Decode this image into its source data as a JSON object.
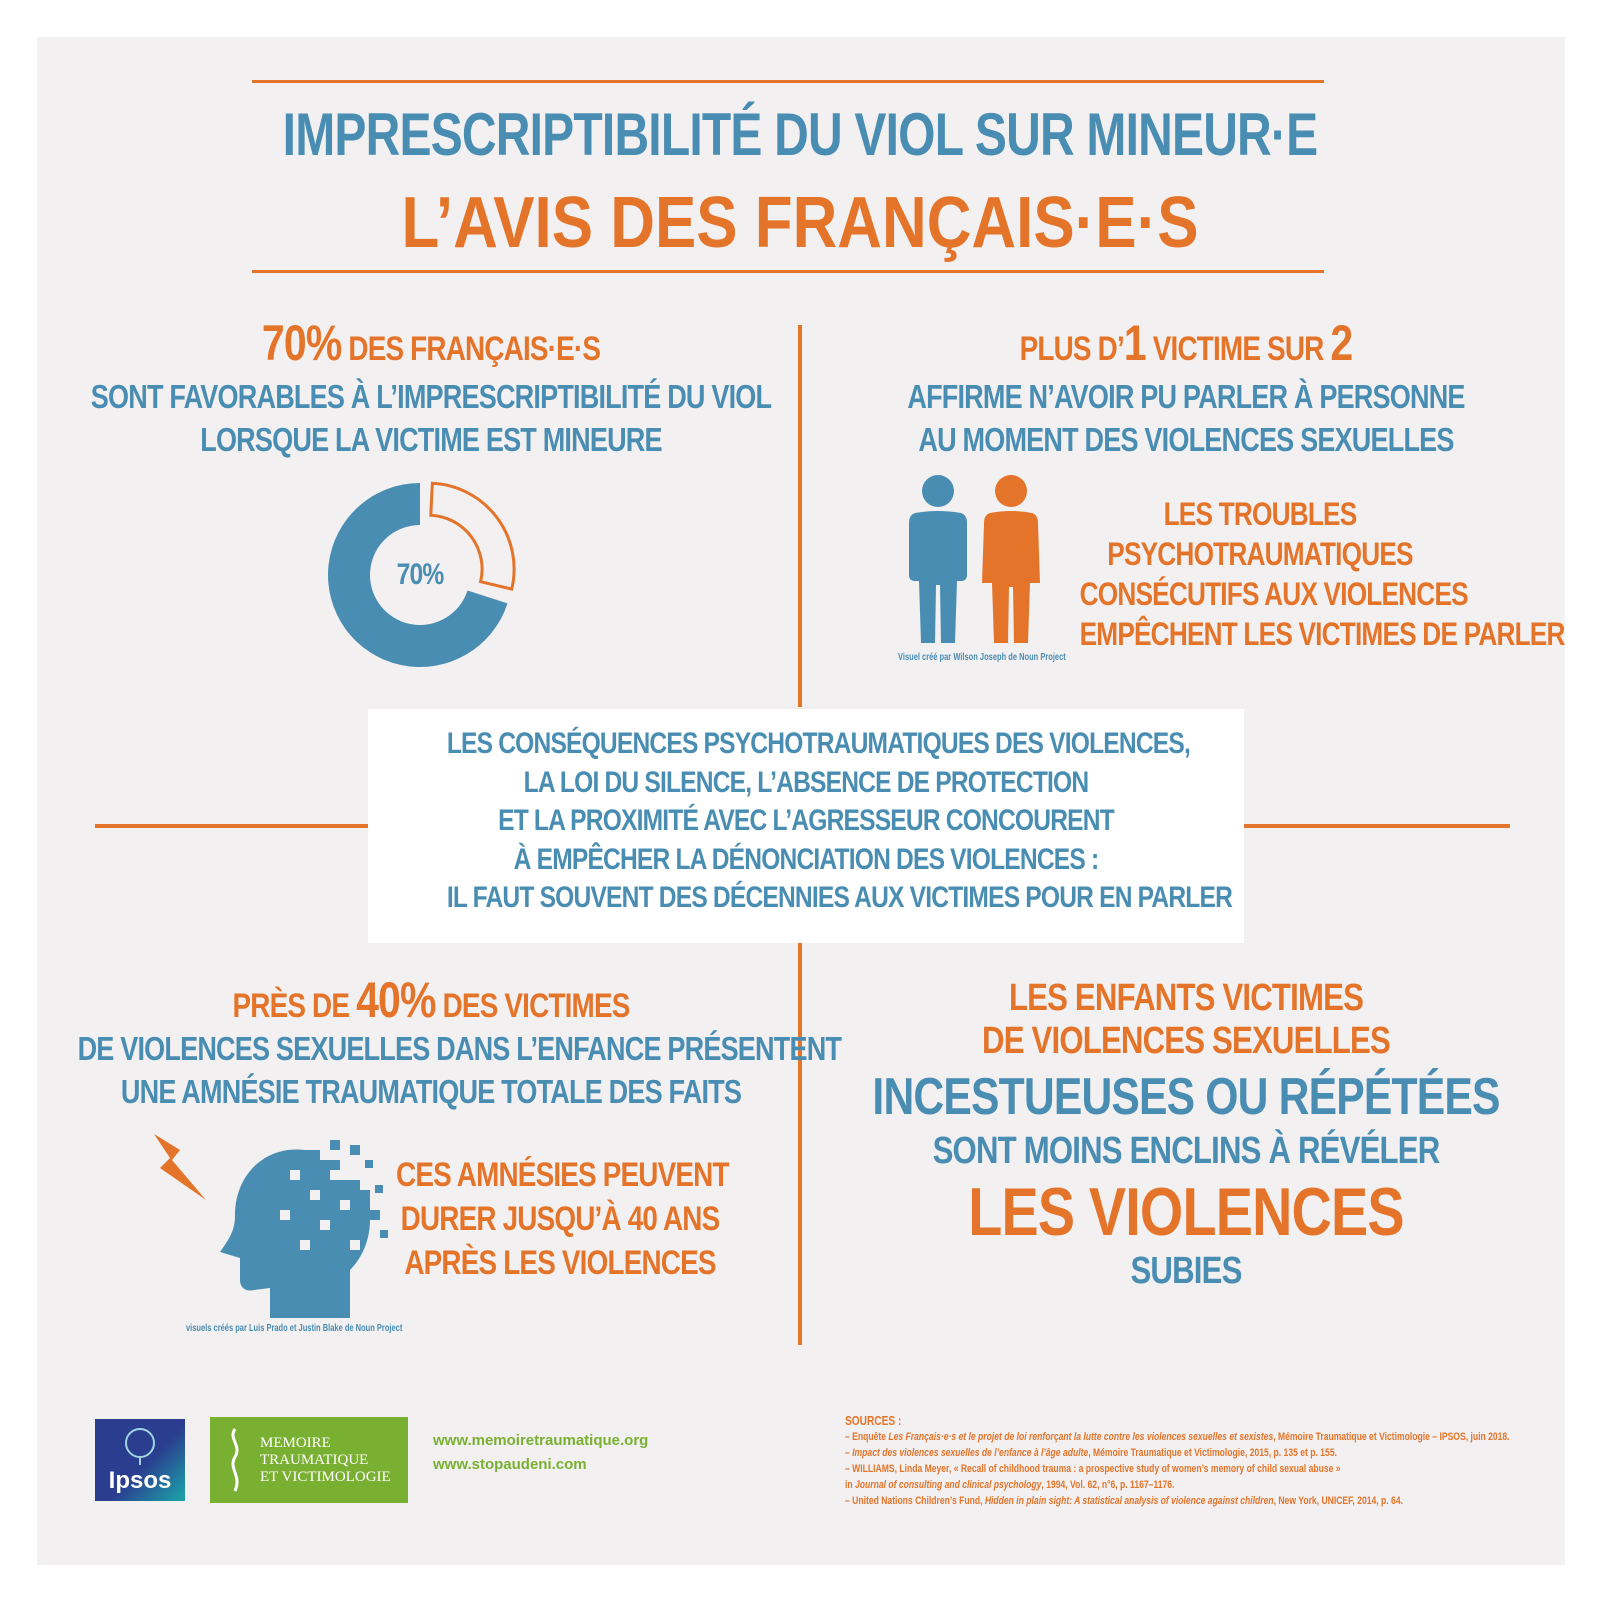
{
  "header": {
    "title_line1": "IMPRESCRIPTIBILITÉ DU VIOL SUR MINEUR·E",
    "title_line2": "L’AVIS DES FRANÇAIS·E·S"
  },
  "q1": {
    "big": "70%",
    "head_rest": " DES FRANÇAIS·E·S",
    "line1": "SONT FAVORABLES À L’IMPRESCRIPTIBILITÉ DU VIOL",
    "line2": "LORSQUE LA VICTIME EST MINEURE",
    "donut_label": "70%",
    "donut_value": 0.7
  },
  "q2": {
    "head_pre": "PLUS D’",
    "head_num1": "1",
    "head_mid": " VICTIME SUR ",
    "head_num2": "2",
    "line1": "AFFIRME N’AVOIR PU PARLER À PERSONNE",
    "line2": "AU MOMENT DES VIOLENCES SEXUELLES",
    "side1": "LES TROUBLES",
    "side2": "PSYCHOTRAUMATIQUES",
    "side3": "CONSÉCUTIFS AUX VIOLENCES",
    "side4": "EMPÊCHENT LES VICTIMES DE PARLER",
    "credit": "Visuel créé par Wilson Joseph de Noun Project"
  },
  "middle": {
    "l1": "LES CONSÉQUENCES PSYCHOTRAUMATIQUES DES VIOLENCES,",
    "l2": "LA LOI DU SILENCE, L’ABSENCE DE PROTECTION",
    "l3": "ET LA PROXIMITÉ AVEC L’AGRESSEUR CONCOURENT",
    "l4": "À EMPÊCHER LA DÉNONCIATION DES VIOLENCES :",
    "l5": "IL FAUT SOUVENT DES DÉCENNIES AUX VICTIMES POUR EN PARLER"
  },
  "q3": {
    "head_pre": "PRÈS DE ",
    "big": "40%",
    "head_rest": " DES VICTIMES",
    "line1": "DE VIOLENCES SEXUELLES DANS L’ENFANCE PRÉSENTENT",
    "line2": "UNE AMNÉSIE TRAUMATIQUE TOTALE DES FAITS",
    "side1": "CES AMNÉSIES PEUVENT",
    "side2": "DURER JUSQU’À 40 ANS",
    "side3": "APRÈS LES VIOLENCES",
    "credit": "visuels créés par Luis Prado et Justin Blake de Noun Project"
  },
  "q4": {
    "l1": "LES ENFANTS VICTIMES",
    "l2": "DE VIOLENCES SEXUELLES",
    "l3": "INCESTUEUSES OU RÉPÉTÉES",
    "l4": "SONT MOINS ENCLINS À RÉVÉLER",
    "l5": "LES VIOLENCES",
    "l6": "SUBIES"
  },
  "footer": {
    "ipsos_logo": "Ipsos",
    "mtv_l1": "MEMOIRE",
    "mtv_l2": "TRAUMATIQUE",
    "mtv_l3": "ET VICTIMOLOGIE",
    "url1": "www.memoiretraumatique.org",
    "url2": "www.stopaudeni.com",
    "sources_title": "SOURCES :",
    "s1a": "– Enquête ",
    "s1b": "Les Français·e·s et le projet de loi renforçant la lutte contre les violences sexuelles et sexistes",
    "s1c": ", Mémoire Traumatique et Victimologie – IPSOS, juin 2018.",
    "s2a": "– ",
    "s2b": "Impact des violences sexuelles de l’enfance à l’âge adulte",
    "s2c": ", Mémoire Traumatique et Victimologie, 2015, p. 135 et p. 155.",
    "s3": "– WILLIAMS, Linda Meyer, « Recall of childhood trauma : a prospective study of women’s memory of child sexual abuse »",
    "s4a": "in ",
    "s4b": "Journal of consulting and clinical psychology",
    "s4c": ", 1994, Vol. 62, n°6, p. 1167–1176.",
    "s5a": "– United Nations Children’s Fund, ",
    "s5b": "Hidden in plain sight: A statistical analysis of violence against children",
    "s5c": ", New York, UNICEF, 2014, p. 64."
  },
  "colors": {
    "blue": "#4a8db3",
    "orange": "#e5742b",
    "background": "#f2f0f0",
    "green": "#7ab032"
  }
}
